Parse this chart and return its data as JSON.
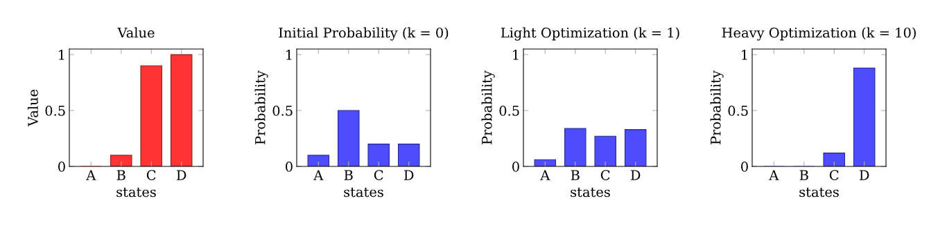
{
  "chart_data": [
    {
      "type": "bar",
      "title": "Value",
      "xlabel": "states",
      "ylabel": "Value",
      "categories": [
        "A",
        "B",
        "C",
        "D"
      ],
      "values": [
        0,
        0.1,
        0.9,
        1.0
      ],
      "color": "#ff3333",
      "ylim": [
        0,
        1.05
      ],
      "yticks": [
        0,
        0.5,
        1
      ]
    },
    {
      "type": "bar",
      "title": "Initial Probability (k = 0)",
      "xlabel": "states",
      "ylabel": "Probability",
      "categories": [
        "A",
        "B",
        "C",
        "D"
      ],
      "values": [
        0.1,
        0.5,
        0.2,
        0.2
      ],
      "color": "#4d4dff",
      "ylim": [
        0,
        1.05
      ],
      "yticks": [
        0,
        0.5,
        1
      ]
    },
    {
      "type": "bar",
      "title": "Light Optimization (k = 1)",
      "xlabel": "states",
      "ylabel": "Probability",
      "categories": [
        "A",
        "B",
        "C",
        "D"
      ],
      "values": [
        0.06,
        0.34,
        0.27,
        0.33
      ],
      "color": "#4d4dff",
      "ylim": [
        0,
        1.05
      ],
      "yticks": [
        0,
        0.5,
        1
      ]
    },
    {
      "type": "bar",
      "title": "Heavy Optimization (k = 10)",
      "xlabel": "states",
      "ylabel": "Probability",
      "categories": [
        "A",
        "B",
        "C",
        "D"
      ],
      "values": [
        0,
        0,
        0.12,
        0.88
      ],
      "color": "#4d4dff",
      "ylim": [
        0,
        1.05
      ],
      "yticks": [
        0,
        0.5,
        1
      ]
    }
  ]
}
